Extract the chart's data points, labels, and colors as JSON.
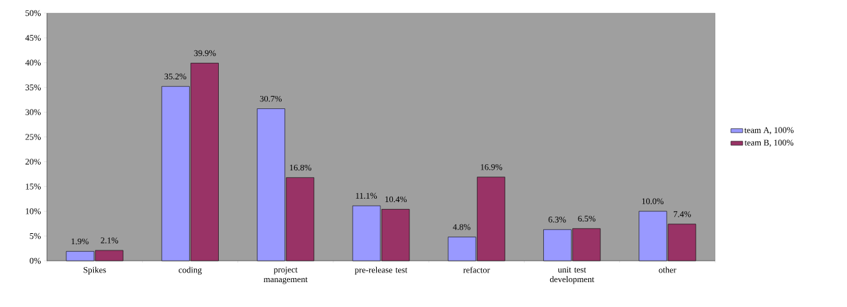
{
  "chart_data": {
    "type": "bar",
    "categories": [
      "Spikes",
      "coding",
      "project management",
      "pre-release test",
      "refactor",
      "unit test development",
      "other"
    ],
    "series": [
      {
        "name": "team A, 100%",
        "color": "#9999ff",
        "values": [
          1.9,
          35.2,
          30.7,
          11.1,
          4.8,
          6.3,
          10.0
        ],
        "value_labels": [
          "1.9%",
          "35.2%",
          "30.7%",
          "11.1%",
          "4.8%",
          "6.3%",
          "10.0%"
        ]
      },
      {
        "name": "team B, 100%",
        "color": "#993366",
        "values": [
          2.1,
          39.9,
          16.8,
          10.4,
          16.9,
          6.5,
          7.4
        ],
        "value_labels": [
          "2.1%",
          "39.9%",
          "16.8%",
          "10.4%",
          "16.9%",
          "6.5%",
          "7.4%"
        ]
      }
    ],
    "ylim": [
      0,
      50
    ],
    "yticks": [
      {
        "value": 0,
        "label": "0%"
      },
      {
        "value": 5,
        "label": "5%"
      },
      {
        "value": 10,
        "label": "10%"
      },
      {
        "value": 15,
        "label": "15%"
      },
      {
        "value": 20,
        "label": "20%"
      },
      {
        "value": 25,
        "label": "25%"
      },
      {
        "value": 30,
        "label": "30%"
      },
      {
        "value": 35,
        "label": "35%"
      },
      {
        "value": 40,
        "label": "40%"
      },
      {
        "value": 45,
        "label": "45%"
      },
      {
        "value": 50,
        "label": "50%"
      }
    ],
    "grid": false,
    "legend": "right"
  }
}
